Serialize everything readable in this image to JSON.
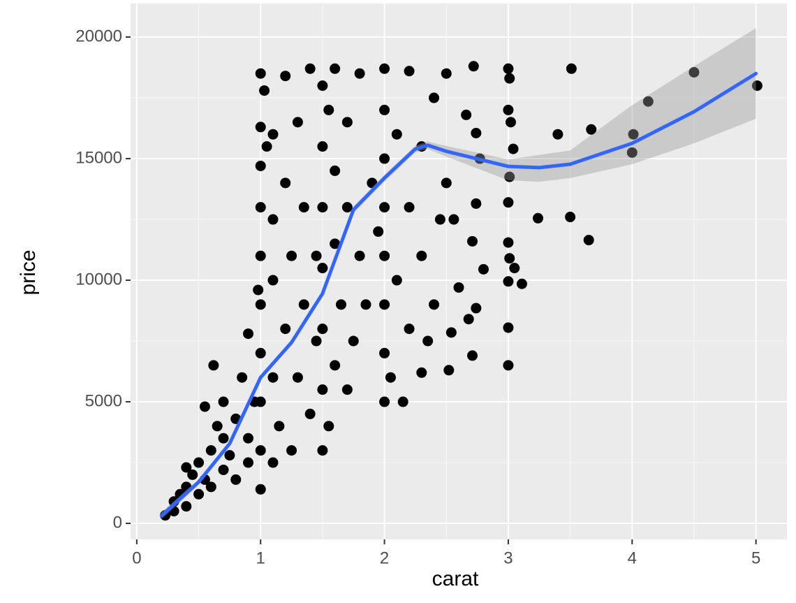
{
  "chart_data": {
    "type": "scatter",
    "x_label": "carat",
    "y_label": "price",
    "xlim": [
      -0.05,
      5.25
    ],
    "ylim": [
      -660,
      21380
    ],
    "xticks": [
      0,
      1,
      2,
      3,
      4,
      5
    ],
    "yticks": [
      0,
      5000,
      10000,
      15000,
      20000
    ],
    "grid": true,
    "color": "#000000",
    "x": [
      2.72,
      3.0,
      3.01,
      3.51,
      4.5,
      5.01,
      4.13,
      3.67,
      3.4,
      4.01,
      4.0,
      3.0,
      3.02,
      3.04,
      3.01,
      3.0,
      3.24,
      3.5,
      3.65,
      3.0,
      3.01,
      3.05,
      3.11,
      3.0,
      3.0,
      3.0,
      2.8,
      2.71,
      2.74,
      2.77,
      2.74,
      2.66,
      2.52,
      2.71,
      2.54,
      2.74,
      2.68,
      2.6,
      2.56,
      0.23,
      0.3,
      0.3,
      0.35,
      0.4,
      0.4,
      0.45,
      0.5,
      0.5,
      0.55,
      0.6,
      0.6,
      0.65,
      0.7,
      0.7,
      0.7,
      0.75,
      0.8,
      0.8,
      0.85,
      0.9,
      0.9,
      0.9,
      0.62,
      0.95,
      0.98,
      0.4,
      0.55,
      1.0,
      1.0,
      1.0,
      1.0,
      1.0,
      1.0,
      1.0,
      1.0,
      1.0,
      1.0,
      1.03,
      1.05,
      1.1,
      1.1,
      1.1,
      1.1,
      1.1,
      1.15,
      1.2,
      1.2,
      1.2,
      1.25,
      1.25,
      1.3,
      1.3,
      1.35,
      1.35,
      1.4,
      1.4,
      1.45,
      1.45,
      1.5,
      1.5,
      1.5,
      1.5,
      1.5,
      1.5,
      1.5,
      1.55,
      1.55,
      1.6,
      1.6,
      1.6,
      1.6,
      1.65,
      1.7,
      1.7,
      1.7,
      1.75,
      1.8,
      1.8,
      1.85,
      1.9,
      1.95,
      2.0,
      2.0,
      2.0,
      2.0,
      2.0,
      2.0,
      2.0,
      2.0,
      2.05,
      2.1,
      2.1,
      2.15,
      2.2,
      2.2,
      2.2,
      2.3,
      2.3,
      2.3,
      2.4,
      2.4,
      2.45,
      2.5,
      2.5,
      2.35
    ],
    "y": [
      18800,
      18700,
      18300,
      18700,
      18550,
      18000,
      17350,
      16200,
      16000,
      16000,
      15250,
      17000,
      16500,
      15400,
      14250,
      13200,
      12550,
      12600,
      11650,
      11550,
      10900,
      10500,
      9850,
      9950,
      8050,
      6500,
      10450,
      11600,
      13150,
      15000,
      16050,
      16800,
      6300,
      6900,
      7850,
      8850,
      8400,
      9700,
      12500,
      330,
      500,
      900,
      1200,
      700,
      1500,
      2000,
      1200,
      2500,
      1800,
      3000,
      1500,
      4000,
      2200,
      3500,
      5000,
      2800,
      4300,
      1800,
      6000,
      3500,
      7800,
      2500,
      6500,
      5000,
      9600,
      2300,
      4800,
      1400,
      3000,
      5000,
      7000,
      9000,
      11000,
      13000,
      14700,
      16300,
      18500,
      17800,
      15500,
      2500,
      6000,
      10000,
      12500,
      16000,
      4000,
      8000,
      14000,
      18400,
      3000,
      11000,
      6000,
      16500,
      9000,
      13000,
      18700,
      4500,
      11000,
      7500,
      3000,
      5500,
      8000,
      10500,
      13000,
      15500,
      18000,
      4000,
      17000,
      6500,
      11500,
      14500,
      18700,
      9000,
      5500,
      13000,
      16500,
      7500,
      11000,
      18500,
      9000,
      14000,
      12000,
      5000,
      7000,
      9000,
      11000,
      13000,
      15000,
      17000,
      18700,
      6000,
      10000,
      16000,
      5000,
      8000,
      13000,
      18600,
      6200,
      11000,
      15500,
      9000,
      17500,
      12500,
      14000,
      18500,
      7500
    ],
    "smooth": {
      "color": "#3366ff",
      "band_color": "#999999",
      "x": [
        0.2,
        0.5,
        0.75,
        1.0,
        1.25,
        1.5,
        1.75,
        2.0,
        2.25,
        2.35,
        2.5,
        3.0,
        3.25,
        3.5,
        4.0,
        4.5,
        5.0
      ],
      "y": [
        316,
        1700,
        3280,
        6000,
        7440,
        9450,
        12900,
        14200,
        15400,
        15550,
        15300,
        14680,
        14630,
        14770,
        15630,
        16930,
        18500
      ],
      "lower": [
        166,
        1580,
        3180,
        5900,
        7320,
        9320,
        12760,
        14060,
        15260,
        15400,
        15080,
        14110,
        14050,
        14200,
        14770,
        15630,
        16640
      ],
      "upper": [
        466,
        1820,
        3380,
        6100,
        7560,
        9580,
        13040,
        14340,
        15540,
        15700,
        15520,
        14970,
        15150,
        15340,
        17200,
        18800,
        20370
      ]
    }
  }
}
